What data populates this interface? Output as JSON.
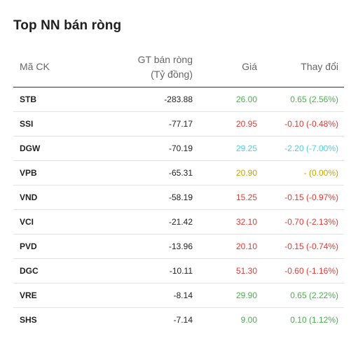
{
  "widget": {
    "title": "Top NN bán ròng"
  },
  "table": {
    "headers": {
      "code": "Mã CK",
      "value_line1": "GT bán ròng",
      "value_line2": "(Tỷ đồng)",
      "price": "Giá",
      "change": "Thay đổi"
    },
    "rows": [
      {
        "code": "STB",
        "value": "-283.88",
        "price": "26.00",
        "change": "0.65 (2.56%)",
        "color": "#4caf50"
      },
      {
        "code": "SSI",
        "value": "-77.17",
        "price": "20.95",
        "change": "-0.10 (-0.48%)",
        "color": "#e53935"
      },
      {
        "code": "DGW",
        "value": "-70.19",
        "price": "29.25",
        "change": "-2.20 (-7.00%)",
        "color": "#4dd0e1"
      },
      {
        "code": "VPB",
        "value": "-65.31",
        "price": "20.90",
        "change": "- (0.00%)",
        "color": "#c9a400"
      },
      {
        "code": "VND",
        "value": "-58.19",
        "price": "15.25",
        "change": "-0.15 (-0.97%)",
        "color": "#e53935"
      },
      {
        "code": "VCI",
        "value": "-21.42",
        "price": "32.10",
        "change": "-0.70 (-2.13%)",
        "color": "#e53935"
      },
      {
        "code": "PVD",
        "value": "-13.96",
        "price": "20.10",
        "change": "-0.15 (-0.74%)",
        "color": "#e53935"
      },
      {
        "code": "DGC",
        "value": "-10.11",
        "price": "51.30",
        "change": "-0.60 (-1.16%)",
        "color": "#e53935"
      },
      {
        "code": "VRE",
        "value": "-8.14",
        "price": "29.90",
        "change": "0.65 (2.22%)",
        "color": "#4caf50"
      },
      {
        "code": "SHS",
        "value": "-7.14",
        "price": "9.00",
        "change": "0.10 (1.12%)",
        "color": "#4caf50"
      }
    ]
  }
}
